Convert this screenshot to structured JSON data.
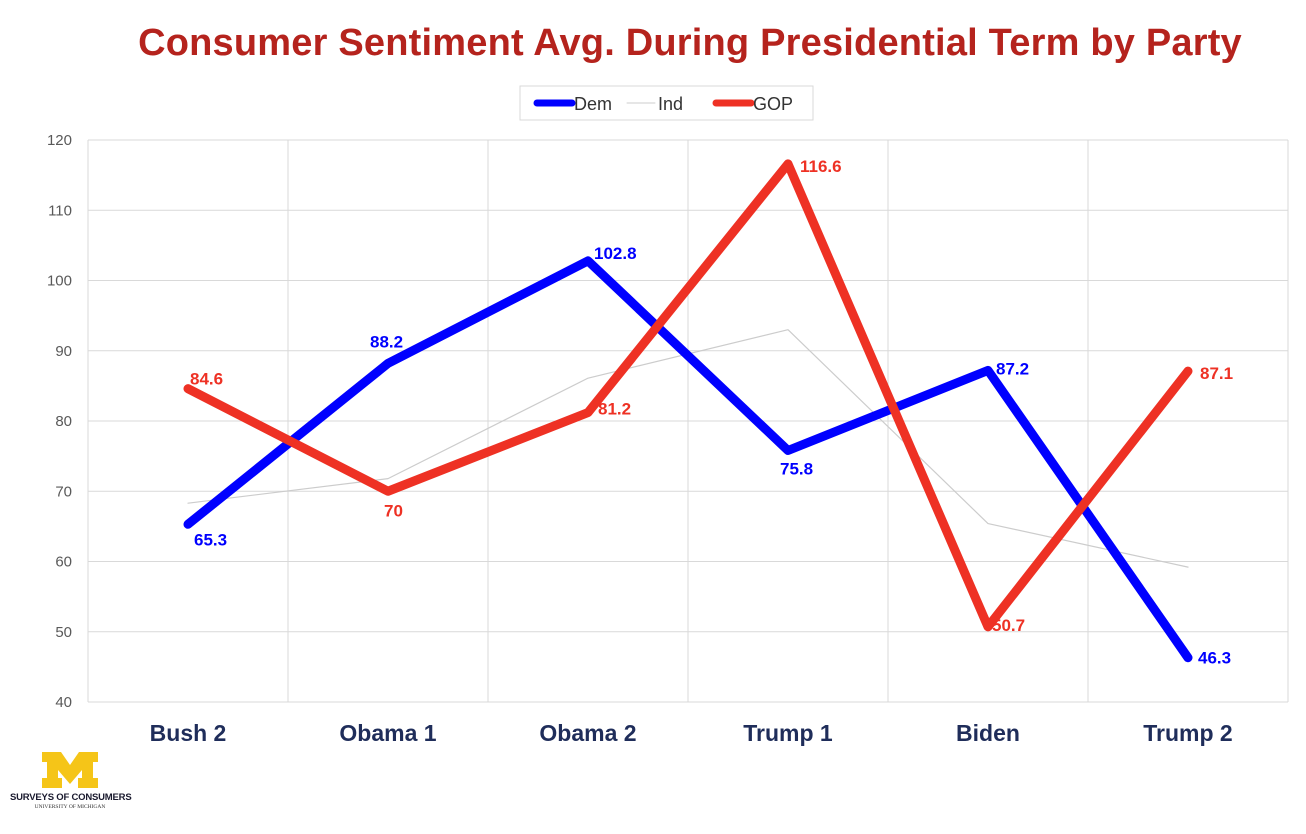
{
  "colors": {
    "title": "#b5231d",
    "dem": "#0000ff",
    "ind": "#cccccc",
    "gop": "#ee3124",
    "axis_text": "#595959",
    "category_text": "#1f2d5a",
    "grid": "#d9d9d9",
    "logo_gold": "#f5c518"
  },
  "logo": {
    "icon": "university-of-michigan-block-m",
    "line1": "SURVEYS OF CONSUMERS",
    "line2": "UNIVERSITY OF MICHIGAN"
  },
  "chart_data": {
    "type": "line",
    "title": "Consumer Sentiment Avg. During Presidential Term by Party",
    "categories": [
      "Bush 2",
      "Obama 1",
      "Obama 2",
      "Trump 1",
      "Biden",
      "Trump 2"
    ],
    "ylim": [
      40,
      120
    ],
    "yticks": [
      40,
      50,
      60,
      70,
      80,
      90,
      100,
      110,
      120
    ],
    "grid": true,
    "legend_position": "top-center",
    "series": [
      {
        "name": "Dem",
        "color": "#0000ff",
        "values": [
          65.3,
          88.2,
          102.8,
          75.8,
          87.2,
          46.3
        ],
        "labels": [
          "65.3",
          "88.2",
          "102.8",
          "75.8",
          "87.2",
          "46.3"
        ]
      },
      {
        "name": "Ind",
        "color": "#cccccc",
        "values": [
          68.3,
          71.8,
          86.1,
          93.0,
          65.4,
          59.2
        ],
        "labels": []
      },
      {
        "name": "GOP",
        "color": "#ee3124",
        "values": [
          84.6,
          70.0,
          81.2,
          116.6,
          50.7,
          87.1
        ],
        "labels": [
          "84.6",
          "70",
          "81.2",
          "116.6",
          "50.7",
          "87.1"
        ]
      }
    ]
  }
}
